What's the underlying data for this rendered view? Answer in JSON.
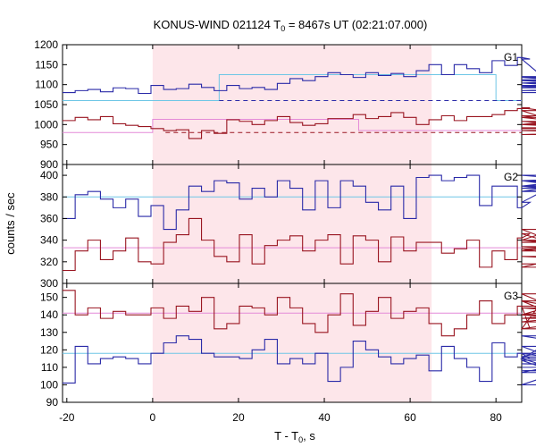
{
  "chart_data": {
    "type": "line",
    "title": "KONUS-WIND 021124 T",
    "title_sub": "0",
    "title_rest": " = 8467s UT (02:21:07.000)",
    "xlabel": "T - T",
    "xlabel_sub": "0",
    "xlabel_rest": ", s",
    "ylabel": "counts / sec",
    "xlim": [
      -21,
      86
    ],
    "x_ticks": [
      -20,
      0,
      20,
      40,
      60,
      80
    ],
    "x_tick_labels": [
      "-20",
      "0",
      "20",
      "40",
      "60",
      "80"
    ],
    "shaded_interval": [
      0,
      65
    ],
    "colors": {
      "blue": "#2a2aa8",
      "dark_red": "#991520",
      "light_blue": "#6ec6e6",
      "pink": "#e48ad8",
      "shade": "#fde6ea"
    },
    "x_step": 2.944,
    "x_start": -21,
    "panels": [
      {
        "name": "G1",
        "ylim": [
          900,
          1200
        ],
        "y_ticks": [
          900,
          950,
          1000,
          1050,
          1100,
          1150,
          1200
        ],
        "y_tick_labels": [
          "900",
          "950",
          "1000",
          "1050",
          "1100",
          "1150",
          "1200"
        ],
        "series": [
          {
            "color": "blue",
            "values": [
              1080,
              1085,
              1088,
              1082,
              1092,
              1090,
              1078,
              1098,
              1088,
              1090,
              1101,
              1093,
              1085,
              1098,
              1090,
              1093,
              1088,
              1103,
              1115,
              1110,
              1120,
              1130,
              1125,
              1118,
              1130,
              1123,
              1128,
              1120,
              1135,
              1150,
              1125,
              1150,
              1140,
              1130,
              1160,
              1148,
              1168,
              1164,
              1120,
              1118,
              1110,
              1104,
              1112,
              1098,
              1092,
              1096,
              1104,
              1085,
              1095,
              1080
            ]
          },
          {
            "color": "dark_red",
            "values": [
              1010,
              1018,
              1012,
              1020,
              1002,
              998,
              995,
              990,
              985,
              987,
              965,
              985,
              978,
              1012,
              1008,
              1000,
              1010,
              1020,
              1005,
              998,
              1002,
              1015,
              1015,
              1025,
              1015,
              1020,
              1030,
              1018,
              1000,
              1012,
              1022,
              1010,
              1020,
              1020,
              1025,
              1035,
              1040,
              1042,
              1035,
              1008,
              1000,
              1018,
              1000,
              990,
              1000,
              1022,
              985,
              975,
              985,
              992
            ]
          }
        ],
        "levels": [
          {
            "color": "light_blue",
            "dashed": false,
            "segments": [
              [
                -21,
                15.5,
                1060
              ],
              [
                15.5,
                80,
                1125
              ],
              [
                80,
                86,
                1060
              ]
            ]
          },
          {
            "color": "pink",
            "dashed": false,
            "segments": [
              [
                -21,
                0,
                980
              ],
              [
                0,
                48,
                1013
              ],
              [
                48,
                86,
                985
              ]
            ]
          },
          {
            "color": "blue",
            "dashed": true,
            "segments": [
              [
                15.5,
                86,
                1060
              ]
            ]
          },
          {
            "color": "dark_red",
            "dashed": true,
            "segments": [
              [
                3,
                86,
                980
              ]
            ]
          }
        ]
      },
      {
        "name": "G2",
        "ylim": [
          300,
          410
        ],
        "y_ticks": [
          300,
          320,
          340,
          360,
          380,
          400
        ],
        "y_tick_labels": [
          "300",
          "320",
          "340",
          "360",
          "380",
          "400"
        ],
        "series": [
          {
            "color": "blue",
            "values": [
              360,
              382,
              385,
              378,
              370,
              378,
              362,
              372,
              350,
              368,
              390,
              385,
              395,
              393,
              378,
              388,
              380,
              395,
              388,
              368,
              395,
              370,
              395,
              390,
              375,
              368,
              390,
              360,
              398,
              400,
              395,
              398,
              400,
              372,
              390,
              390,
              370,
              375,
              385,
              390,
              395,
              388,
              390,
              385,
              388,
              395,
              400,
              390,
              395,
              385
            ]
          },
          {
            "color": "dark_red",
            "values": [
              312,
              330,
              340,
              322,
              330,
              342,
              320,
              318,
              338,
              345,
              360,
              340,
              325,
              320,
              345,
              318,
              335,
              340,
              344,
              330,
              340,
              345,
              318,
              344,
              340,
              320,
              343,
              330,
              338,
              338,
              328,
              332,
              340,
              315,
              330,
              322,
              342,
              346,
              340,
              350,
              334,
              330,
              338,
              340,
              332,
              315,
              340,
              332,
              325,
              318
            ]
          }
        ],
        "levels": [
          {
            "color": "light_blue",
            "dashed": false,
            "segments": [
              [
                -21,
                86,
                380
              ]
            ]
          },
          {
            "color": "pink",
            "dashed": false,
            "segments": [
              [
                -21,
                86,
                333
              ]
            ]
          }
        ]
      },
      {
        "name": "G3",
        "ylim": [
          90,
          158
        ],
        "y_ticks": [
          90,
          100,
          110,
          120,
          130,
          140,
          150
        ],
        "y_tick_labels": [
          "90",
          "100",
          "110",
          "120",
          "130",
          "140",
          "150"
        ],
        "series": [
          {
            "color": "blue",
            "values": [
              101,
              122,
              112,
              115,
              116,
              115,
              112,
              118,
              124,
              128,
              126,
              118,
              116,
              116,
              115,
              120,
              126,
              112,
              115,
              112,
              118,
              102,
              110,
              125,
              120,
              116,
              112,
              115,
              117,
              108,
              122,
              115,
              110,
              102,
              124,
              116,
              118,
              115,
              122,
              115,
              107,
              114,
              100,
              116,
              128,
              118,
              108,
              112,
              112,
              110
            ]
          },
          {
            "color": "dark_red",
            "values": [
              154,
              140,
              144,
              138,
              142,
              140,
              140,
              144,
              138,
              145,
              142,
              150,
              132,
              135,
              145,
              144,
              140,
              150,
              144,
              135,
              130,
              140,
              152,
              134,
              142,
              150,
              138,
              142,
              144,
              135,
              128,
              132,
              140,
              148,
              135,
              140,
              145,
              132,
              148,
              140,
              138,
              140,
              152,
              132,
              140,
              148,
              136,
              144,
              138,
              145
            ]
          }
        ],
        "levels": [
          {
            "color": "light_blue",
            "dashed": false,
            "segments": [
              [
                -21,
                86,
                118
              ]
            ]
          },
          {
            "color": "pink",
            "dashed": false,
            "segments": [
              [
                -21,
                86,
                141
              ]
            ]
          }
        ]
      }
    ]
  }
}
